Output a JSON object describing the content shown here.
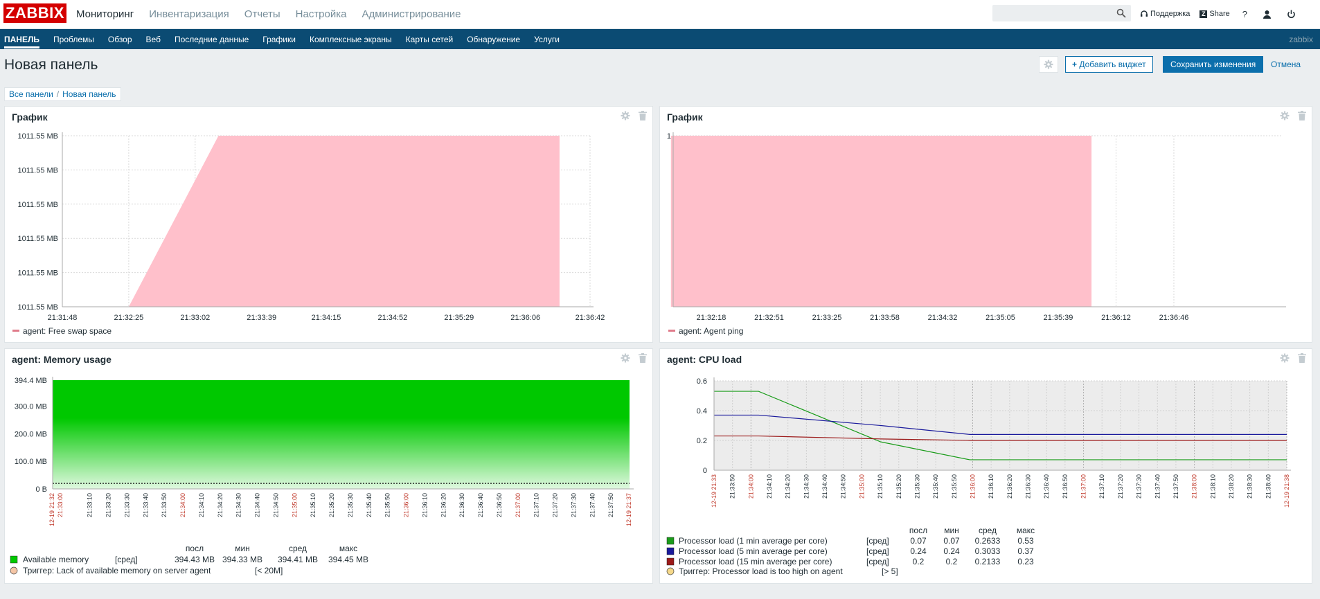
{
  "app": {
    "logo": "ZABBIX"
  },
  "main_menu": [
    {
      "label": "Мониторинг",
      "active": true
    },
    {
      "label": "Инвентаризация"
    },
    {
      "label": "Отчеты"
    },
    {
      "label": "Настройка"
    },
    {
      "label": "Администрирование"
    }
  ],
  "top_links": {
    "support": "Поддержка",
    "share": "Share",
    "help": "?"
  },
  "sub_menu": [
    "ПАНЕЛЬ",
    "Проблемы",
    "Обзор",
    "Веб",
    "Последние данные",
    "Графики",
    "Комплексные экраны",
    "Карты сетей",
    "Обнаружение",
    "Услуги"
  ],
  "sub_menu_right": "zabbix",
  "page": {
    "title": "Новая панель",
    "add_widget": "Добавить виджет",
    "save": "Сохранить изменения",
    "cancel": "Отмена"
  },
  "breadcrumb": {
    "root": "Все панели",
    "current": "Новая панель"
  },
  "colors": {
    "topbar": "#ffffff",
    "subbar": "#0b4b73",
    "accent": "#0b6fac",
    "logo": "#d40000",
    "pink_area": "#ffc0cb",
    "green_area": "#00c800",
    "red_series": "#c0392b"
  },
  "widgets": {
    "w1": {
      "title": "График",
      "legend": "agent: Free swap space",
      "chart_data": {
        "type": "area",
        "y_ticks": [
          "1011.55 MB",
          "1011.55 MB",
          "1011.55 MB",
          "1011.55 MB",
          "1011.55 MB",
          "1011.55 MB"
        ],
        "x_ticks": [
          "21:31:48",
          "21:32:25",
          "21:33:02",
          "21:33:39",
          "21:34:15",
          "21:34:52",
          "21:35:29",
          "21:36:06",
          "21:36:42"
        ],
        "area_start": "21:32:25",
        "area_full": "21:33:15",
        "area_end": "21:36:25",
        "series": [
          {
            "name": "agent: Free swap space",
            "color": "#ffc0cb"
          }
        ]
      }
    },
    "w2": {
      "title": "График",
      "legend": "agent: Agent ping",
      "chart_data": {
        "type": "area",
        "y_ticks": [
          "1"
        ],
        "x_ticks": [
          "21:32:18",
          "21:32:51",
          "21:33:25",
          "21:33:58",
          "21:34:32",
          "21:35:05",
          "21:35:39",
          "21:36:12",
          "21:36:46"
        ],
        "area_start": "21:31:55",
        "area_end": "21:35:55",
        "series": [
          {
            "name": "agent: Agent ping",
            "value": 1,
            "color": "#ffc0cb"
          }
        ]
      }
    },
    "w3": {
      "title": "agent: Memory usage",
      "chart_data": {
        "type": "area",
        "y_ticks": [
          "394.4 MB",
          "300.0 MB",
          "200.0 MB",
          "100.0 MB",
          "0 B"
        ],
        "ylim": [
          0,
          394.4
        ],
        "x_red_labels": [
          "12-19 21:32",
          "21:33:00",
          "21:34:00",
          "21:35:00",
          "21:36:00",
          "21:37:00",
          "12-19 21:37"
        ],
        "x_ticks": [
          "21:33:10",
          "21:33:20",
          "21:33:30",
          "21:33:40",
          "21:33:50",
          "21:34:10",
          "21:34:20",
          "21:34:30",
          "21:34:40",
          "21:34:50",
          "21:35:10",
          "21:35:20",
          "21:35:30",
          "21:35:40",
          "21:35:50",
          "21:36:10",
          "21:36:20",
          "21:36:30",
          "21:36:40",
          "21:36:50",
          "21:37:10",
          "21:37:20",
          "21:37:30",
          "21:37:40",
          "21:37:50"
        ],
        "trigger_level": 20,
        "series": [
          {
            "name": "Available memory",
            "func": "[сред]",
            "last": "394.43 MB",
            "min": "394.33 MB",
            "avg": "394.41 MB",
            "max": "394.45 MB",
            "color": "#00c800"
          }
        ],
        "stat_headers": [
          "посл",
          "мин",
          "сред",
          "макс"
        ],
        "trigger": {
          "label": "Триггер: Lack of available memory on server agent",
          "cond": "[< 20M]"
        }
      }
    },
    "w4": {
      "title": "agent: CPU load",
      "chart_data": {
        "type": "line",
        "y_ticks": [
          "0.6",
          "0.4",
          "0.2",
          "0"
        ],
        "ylim": [
          0,
          0.6
        ],
        "x_red_labels": [
          "12-19 21:33",
          "21:34:00",
          "21:35:00",
          "21:36:00",
          "21:37:00",
          "21:38:00",
          "12-19 21:38"
        ],
        "x_ticks": [
          "21:33:50",
          "21:34:10",
          "21:34:20",
          "21:34:30",
          "21:34:40",
          "21:34:50",
          "21:35:10",
          "21:35:20",
          "21:35:30",
          "21:35:40",
          "21:35:50",
          "21:36:10",
          "21:36:20",
          "21:36:30",
          "21:36:40",
          "21:36:50",
          "21:37:10",
          "21:37:20",
          "21:37:30",
          "21:37:40",
          "21:37:50",
          "21:38:10",
          "21:38:20",
          "21:38:30",
          "21:38:40"
        ],
        "series": [
          {
            "name": "Processor load (1 min average per core)",
            "func": "[сред]",
            "last": "0.07",
            "min": "0.07",
            "avg": "0.2633",
            "max": "0.53",
            "color": "#1a9c1a",
            "points": [
              [
                0,
                0.53
              ],
              [
                40,
                0.53
              ],
              [
                150,
                0.19
              ],
              [
                230,
                0.07
              ],
              [
                515,
                0.07
              ]
            ]
          },
          {
            "name": "Processor load (5 min average per core)",
            "func": "[сред]",
            "last": "0.24",
            "min": "0.24",
            "avg": "0.3033",
            "max": "0.37",
            "color": "#1a1a9c",
            "points": [
              [
                0,
                0.37
              ],
              [
                40,
                0.37
              ],
              [
                150,
                0.3
              ],
              [
                230,
                0.24
              ],
              [
                515,
                0.24
              ]
            ]
          },
          {
            "name": "Processor load (15 min average per core)",
            "func": "[сред]",
            "last": "0.2",
            "min": "0.2",
            "avg": "0.2133",
            "max": "0.23",
            "color": "#9c1a1a",
            "points": [
              [
                0,
                0.23
              ],
              [
                40,
                0.23
              ],
              [
                150,
                0.21
              ],
              [
                230,
                0.2
              ],
              [
                515,
                0.2
              ]
            ]
          }
        ],
        "stat_headers": [
          "посл",
          "мин",
          "сред",
          "макс"
        ],
        "trigger": {
          "label": "Триггер: Processor load is too high on agent",
          "cond": "[> 5]"
        }
      }
    }
  }
}
